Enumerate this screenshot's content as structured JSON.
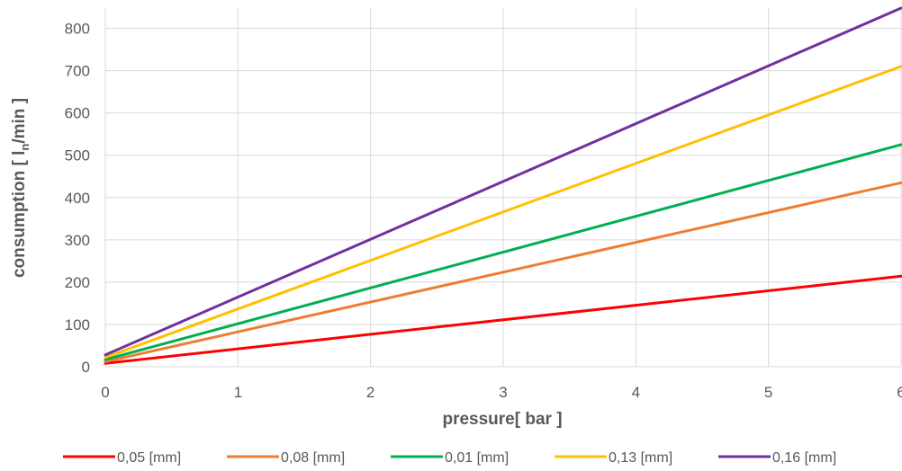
{
  "chart_data": {
    "type": "line",
    "xlabel": "pressure[ bar ]",
    "ylabel": "consumption [ l_n/min ]",
    "ylabel_main": "consumption [ l",
    "ylabel_sub": "n",
    "ylabel_tail": "/min ]",
    "xlim": [
      0,
      6
    ],
    "ylim": [
      0,
      850
    ],
    "x_ticks": [
      "0",
      "1",
      "2",
      "3",
      "4",
      "5",
      "6"
    ],
    "y_ticks": [
      "0",
      "100",
      "200",
      "300",
      "400",
      "500",
      "600",
      "700",
      "800"
    ],
    "grid": true,
    "legend_position": "bottom",
    "series": [
      {
        "name": "0,05  [mm]",
        "color": "#FF0000",
        "x": [
          0,
          6
        ],
        "y": [
          8,
          214
        ]
      },
      {
        "name": "0,08  [mm]",
        "color": "#ED7D31",
        "x": [
          0,
          6
        ],
        "y": [
          12,
          435
        ]
      },
      {
        "name": "0,01  [mm]",
        "color": "#00B050",
        "x": [
          0,
          6
        ],
        "y": [
          17,
          525
        ]
      },
      {
        "name": "0,13  [mm]",
        "color": "#FFC000",
        "x": [
          0,
          6
        ],
        "y": [
          22,
          710
        ]
      },
      {
        "name": "0,16  [mm]",
        "color": "#7030A0",
        "x": [
          0,
          6
        ],
        "y": [
          28,
          848
        ]
      }
    ]
  }
}
